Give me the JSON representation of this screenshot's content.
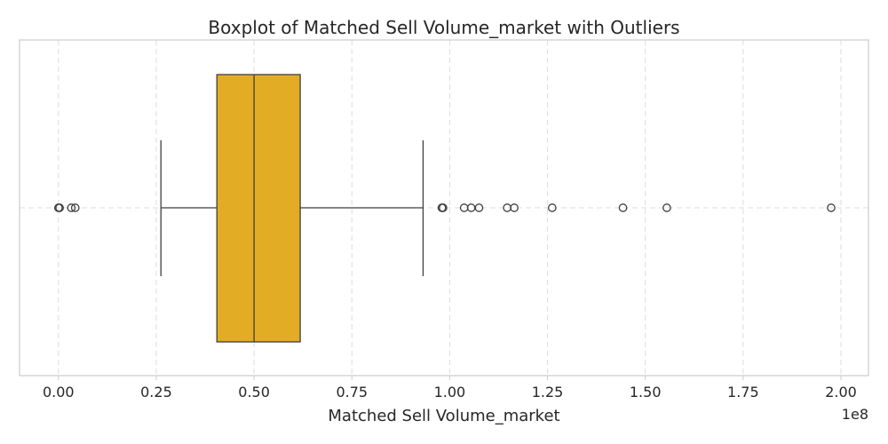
{
  "chart_data": {
    "type": "boxplot",
    "title": "Boxplot of Matched Sell Volume_market with Outliers",
    "xlabel": "Matched Sell Volume_market",
    "ylabel": "",
    "x_scale_exponent_label": "1e8",
    "xlim": [
      -0.1,
      2.07
    ],
    "x_ticks": [
      0.0,
      0.25,
      0.5,
      0.75,
      1.0,
      1.25,
      1.5,
      1.75,
      2.0
    ],
    "x_tick_labels": [
      "0.00",
      "0.25",
      "0.50",
      "0.75",
      "1.00",
      "1.25",
      "1.50",
      "1.75",
      "2.00"
    ],
    "grid": true,
    "orientation": "horizontal",
    "box_color": "#e2ac25",
    "series": [
      {
        "name": "Matched Sell Volume_market",
        "whisker_low": 0.262,
        "q1": 0.405,
        "median": 0.5,
        "q3": 0.618,
        "whisker_high": 0.932,
        "outliers": [
          0.0,
          0.003,
          0.033,
          0.043,
          0.98,
          0.983,
          1.037,
          1.055,
          1.075,
          1.147,
          1.165,
          1.262,
          1.443,
          1.555,
          1.975
        ]
      }
    ]
  }
}
